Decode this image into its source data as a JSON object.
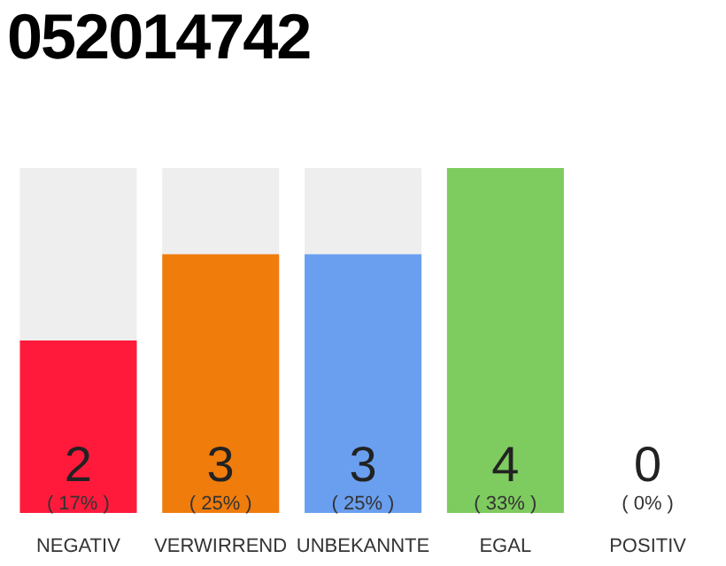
{
  "chart_data": {
    "type": "bar",
    "title": "052014742",
    "categories": [
      "NEGATIV",
      "VERWIRREND",
      "UNBEKANNTE",
      "EGAL",
      "POSITIV"
    ],
    "values": [
      2,
      3,
      3,
      4,
      0
    ],
    "colors": [
      "#ff1a3c",
      "#f07c0c",
      "#6a9ff0",
      "#7ecb5f",
      "#cccccc"
    ],
    "data_labels": true,
    "grid": false,
    "legend": false,
    "annotations": [
      "( 17% )",
      "( 25% )",
      "( 25% )",
      "( 33% )",
      "( 0% )"
    ]
  }
}
